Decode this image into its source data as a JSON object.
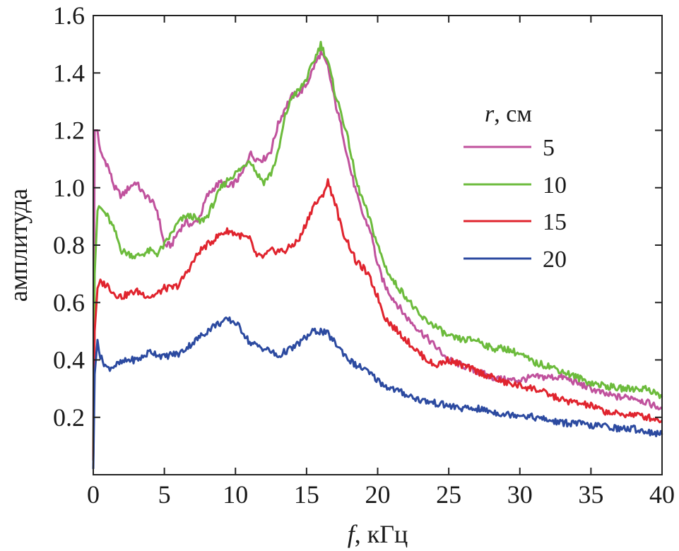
{
  "chart_data": {
    "type": "line",
    "title": "",
    "xlabel": {
      "var": "f",
      "unit": ", кГц"
    },
    "ylabel": "амплитуда",
    "xlim": [
      0,
      40
    ],
    "ylim": [
      0,
      1.6
    ],
    "x_ticks": [
      0,
      5,
      10,
      15,
      20,
      25,
      30,
      35,
      40
    ],
    "x_tick_labels": [
      "0",
      "5",
      "10",
      "15",
      "20",
      "25",
      "30",
      "35",
      "40"
    ],
    "y_ticks": [
      0.2,
      0.4,
      0.6,
      0.8,
      1.0,
      1.2,
      1.4,
      1.6
    ],
    "y_tick_labels": [
      "0.2",
      "0.4",
      "0.6",
      "0.8",
      "1.0",
      "1.2",
      "1.4",
      "1.6"
    ],
    "grid": false,
    "legend": {
      "placement": "right",
      "title_var": "r",
      "title_unit": ", см"
    },
    "series": [
      {
        "name": "5",
        "color": "#c0529d",
        "x": [
          0,
          0.1,
          0.3,
          0.5,
          1.0,
          1.5,
          2.0,
          2.5,
          3.0,
          3.5,
          4.0,
          4.5,
          5.0,
          5.5,
          6.0,
          6.5,
          7.0,
          7.5,
          8.0,
          8.5,
          9.0,
          9.5,
          10.0,
          10.5,
          11.0,
          11.5,
          12.0,
          12.5,
          13.0,
          13.5,
          14.0,
          14.5,
          15.0,
          15.5,
          16.0,
          16.5,
          17.0,
          17.5,
          18.0,
          18.5,
          19.0,
          19.5,
          20.0,
          20.5,
          21.0,
          22.0,
          23.0,
          24.0,
          25.0,
          26.0,
          27.0,
          28.0,
          29.0,
          30.0,
          31.0,
          32.0,
          33.0,
          34.0,
          35.0,
          36.0,
          37.0,
          38.0,
          39.0,
          40.0
        ],
        "y": [
          0.05,
          1.2,
          1.2,
          1.12,
          1.08,
          1.0,
          0.97,
          1.0,
          1.02,
          0.98,
          0.96,
          0.92,
          0.8,
          0.8,
          0.85,
          0.88,
          0.87,
          0.9,
          0.97,
          1.0,
          1.02,
          1.0,
          1.02,
          1.05,
          1.12,
          1.1,
          1.1,
          1.13,
          1.22,
          1.28,
          1.32,
          1.33,
          1.36,
          1.42,
          1.47,
          1.42,
          1.3,
          1.2,
          1.08,
          0.98,
          0.9,
          0.85,
          0.73,
          0.66,
          0.62,
          0.55,
          0.5,
          0.45,
          0.4,
          0.38,
          0.36,
          0.34,
          0.33,
          0.33,
          0.34,
          0.34,
          0.34,
          0.32,
          0.3,
          0.28,
          0.27,
          0.27,
          0.25,
          0.23
        ]
      },
      {
        "name": "10",
        "color": "#6cbb3c",
        "x": [
          0,
          0.1,
          0.3,
          0.5,
          1.0,
          1.5,
          2.0,
          2.5,
          3.0,
          3.5,
          4.0,
          4.5,
          5.0,
          5.5,
          6.0,
          6.5,
          7.0,
          7.5,
          8.0,
          8.5,
          9.0,
          9.5,
          10.0,
          10.5,
          11.0,
          11.5,
          12.0,
          12.5,
          13.0,
          13.5,
          14.0,
          14.5,
          15.0,
          15.5,
          16.0,
          16.5,
          17.0,
          17.5,
          18.0,
          18.5,
          19.0,
          19.5,
          20.0,
          20.5,
          21.0,
          22.0,
          23.0,
          24.0,
          25.0,
          26.0,
          27.0,
          28.0,
          29.0,
          30.0,
          31.0,
          32.0,
          33.0,
          34.0,
          35.0,
          36.0,
          37.0,
          38.0,
          39.0,
          40.0
        ],
        "y": [
          0.05,
          0.7,
          0.92,
          0.93,
          0.9,
          0.85,
          0.78,
          0.77,
          0.76,
          0.77,
          0.78,
          0.77,
          0.8,
          0.84,
          0.88,
          0.9,
          0.9,
          0.88,
          0.9,
          0.95,
          1.0,
          1.03,
          1.05,
          1.07,
          1.1,
          1.05,
          1.02,
          1.05,
          1.12,
          1.25,
          1.32,
          1.34,
          1.38,
          1.44,
          1.5,
          1.44,
          1.33,
          1.25,
          1.15,
          1.02,
          0.95,
          0.88,
          0.8,
          0.73,
          0.68,
          0.62,
          0.55,
          0.52,
          0.48,
          0.47,
          0.47,
          0.44,
          0.44,
          0.42,
          0.39,
          0.38,
          0.36,
          0.34,
          0.32,
          0.31,
          0.3,
          0.3,
          0.3,
          0.27
        ]
      },
      {
        "name": "15",
        "color": "#e0242e",
        "x": [
          0,
          0.1,
          0.3,
          0.5,
          1.0,
          1.5,
          2.0,
          2.5,
          3.0,
          3.5,
          4.0,
          4.5,
          5.0,
          5.5,
          6.0,
          6.5,
          7.0,
          7.5,
          8.0,
          8.5,
          9.0,
          9.5,
          10.0,
          10.5,
          11.0,
          11.5,
          12.0,
          12.5,
          13.0,
          13.5,
          14.0,
          14.5,
          15.0,
          15.5,
          16.0,
          16.5,
          17.0,
          17.5,
          18.0,
          18.5,
          19.0,
          19.5,
          20.0,
          20.5,
          21.0,
          22.0,
          23.0,
          24.0,
          25.0,
          26.0,
          27.0,
          28.0,
          29.0,
          30.0,
          31.0,
          32.0,
          33.0,
          34.0,
          35.0,
          36.0,
          37.0,
          38.0,
          39.0,
          40.0
        ],
        "y": [
          0.05,
          0.5,
          0.65,
          0.67,
          0.66,
          0.63,
          0.62,
          0.63,
          0.64,
          0.63,
          0.62,
          0.63,
          0.65,
          0.65,
          0.66,
          0.7,
          0.74,
          0.78,
          0.8,
          0.82,
          0.84,
          0.85,
          0.84,
          0.83,
          0.82,
          0.76,
          0.76,
          0.78,
          0.78,
          0.78,
          0.8,
          0.82,
          0.88,
          0.94,
          0.96,
          1.02,
          0.95,
          0.85,
          0.8,
          0.74,
          0.72,
          0.68,
          0.62,
          0.55,
          0.52,
          0.47,
          0.42,
          0.38,
          0.4,
          0.38,
          0.36,
          0.34,
          0.32,
          0.31,
          0.3,
          0.28,
          0.26,
          0.25,
          0.24,
          0.22,
          0.21,
          0.21,
          0.2,
          0.19
        ]
      },
      {
        "name": "20",
        "color": "#2c4aa0",
        "x": [
          0,
          0.1,
          0.3,
          0.5,
          1.0,
          1.5,
          2.0,
          2.5,
          3.0,
          3.5,
          4.0,
          4.5,
          5.0,
          5.5,
          6.0,
          6.5,
          7.0,
          7.5,
          8.0,
          8.5,
          9.0,
          9.5,
          10.0,
          10.5,
          11.0,
          11.5,
          12.0,
          12.5,
          13.0,
          13.5,
          14.0,
          14.5,
          15.0,
          15.5,
          16.0,
          16.5,
          17.0,
          17.5,
          18.0,
          18.5,
          19.0,
          19.5,
          20.0,
          20.5,
          21.0,
          22.0,
          23.0,
          24.0,
          25.0,
          26.0,
          27.0,
          28.0,
          29.0,
          30.0,
          31.0,
          32.0,
          33.0,
          34.0,
          35.0,
          36.0,
          37.0,
          38.0,
          39.0,
          40.0
        ],
        "y": [
          0.02,
          0.35,
          0.47,
          0.41,
          0.37,
          0.38,
          0.39,
          0.4,
          0.4,
          0.41,
          0.43,
          0.42,
          0.41,
          0.42,
          0.42,
          0.44,
          0.46,
          0.48,
          0.5,
          0.52,
          0.53,
          0.54,
          0.53,
          0.5,
          0.46,
          0.45,
          0.44,
          0.43,
          0.41,
          0.43,
          0.44,
          0.46,
          0.48,
          0.5,
          0.5,
          0.49,
          0.46,
          0.43,
          0.4,
          0.38,
          0.37,
          0.35,
          0.33,
          0.31,
          0.3,
          0.28,
          0.26,
          0.25,
          0.24,
          0.23,
          0.23,
          0.22,
          0.21,
          0.21,
          0.2,
          0.19,
          0.18,
          0.18,
          0.17,
          0.17,
          0.16,
          0.16,
          0.15,
          0.14
        ]
      }
    ]
  }
}
